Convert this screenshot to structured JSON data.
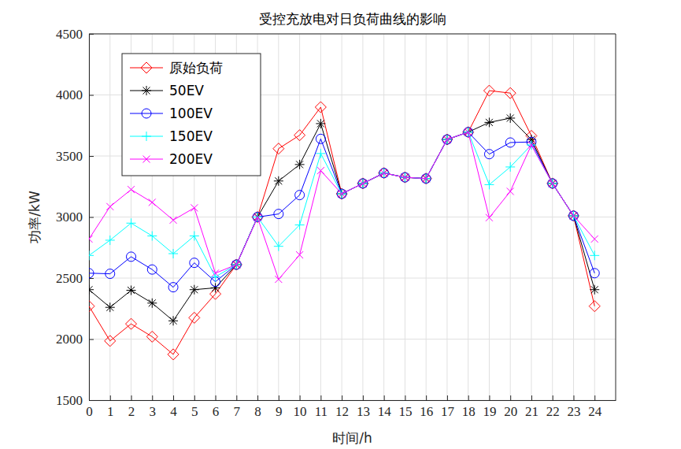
{
  "chart_data": {
    "type": "line",
    "title": "受控充放电对日负荷曲线的影响",
    "x_label": "时间/h",
    "y_label": "功率/kW",
    "x": [
      0,
      1,
      2,
      3,
      4,
      5,
      6,
      7,
      8,
      9,
      10,
      11,
      12,
      13,
      14,
      15,
      16,
      17,
      18,
      19,
      20,
      21,
      22,
      23,
      24
    ],
    "series": [
      {
        "name": "原始负荷",
        "color": "#ff0000",
        "marker": "diamond",
        "values": [
          2270,
          1985,
          2125,
          2020,
          1875,
          2175,
          2370,
          2610,
          3000,
          3560,
          3670,
          3900,
          3190,
          3275,
          3360,
          3325,
          3315,
          3635,
          3695,
          4035,
          4015,
          3665,
          3275,
          3010,
          2270
        ]
      },
      {
        "name": "50EV",
        "color": "#000000",
        "marker": "asterisk",
        "values": [
          2405,
          2260,
          2400,
          2295,
          2150,
          2405,
          2420,
          2610,
          3000,
          3295,
          3430,
          3765,
          3190,
          3275,
          3360,
          3325,
          3315,
          3635,
          3695,
          3775,
          3810,
          3635,
          3275,
          3010,
          2405
        ]
      },
      {
        "name": "100EV",
        "color": "#0000ff",
        "marker": "circle",
        "values": [
          2540,
          2535,
          2675,
          2570,
          2425,
          2625,
          2470,
          2610,
          3000,
          3025,
          3180,
          3640,
          3190,
          3275,
          3360,
          3325,
          3315,
          3635,
          3695,
          3515,
          3610,
          3615,
          3275,
          3010,
          2540
        ]
      },
      {
        "name": "150EV",
        "color": "#00ffff",
        "marker": "plus",
        "values": [
          2685,
          2810,
          2950,
          2845,
          2700,
          2845,
          2510,
          2610,
          3000,
          2760,
          2935,
          3520,
          3190,
          3275,
          3360,
          3325,
          3315,
          3635,
          3695,
          3265,
          3410,
          3590,
          3275,
          3010,
          2685
        ]
      },
      {
        "name": "200EV",
        "color": "#ff00ff",
        "marker": "x",
        "values": [
          2820,
          3085,
          3225,
          3120,
          2975,
          3075,
          2540,
          2610,
          2995,
          2490,
          2690,
          3380,
          3190,
          3275,
          3360,
          3325,
          3315,
          3635,
          3695,
          2995,
          3210,
          3590,
          3275,
          3010,
          2820
        ]
      }
    ],
    "xlim": [
      0,
      25
    ],
    "xticks": [
      0,
      1,
      2,
      3,
      4,
      5,
      6,
      7,
      8,
      9,
      10,
      11,
      12,
      13,
      14,
      15,
      16,
      17,
      18,
      19,
      20,
      21,
      22,
      23,
      24
    ],
    "ylim": [
      1500,
      4500
    ],
    "yticks": [
      1500,
      2000,
      2500,
      3000,
      3500,
      4000,
      4500
    ],
    "grid": true,
    "legend": "upper left"
  }
}
